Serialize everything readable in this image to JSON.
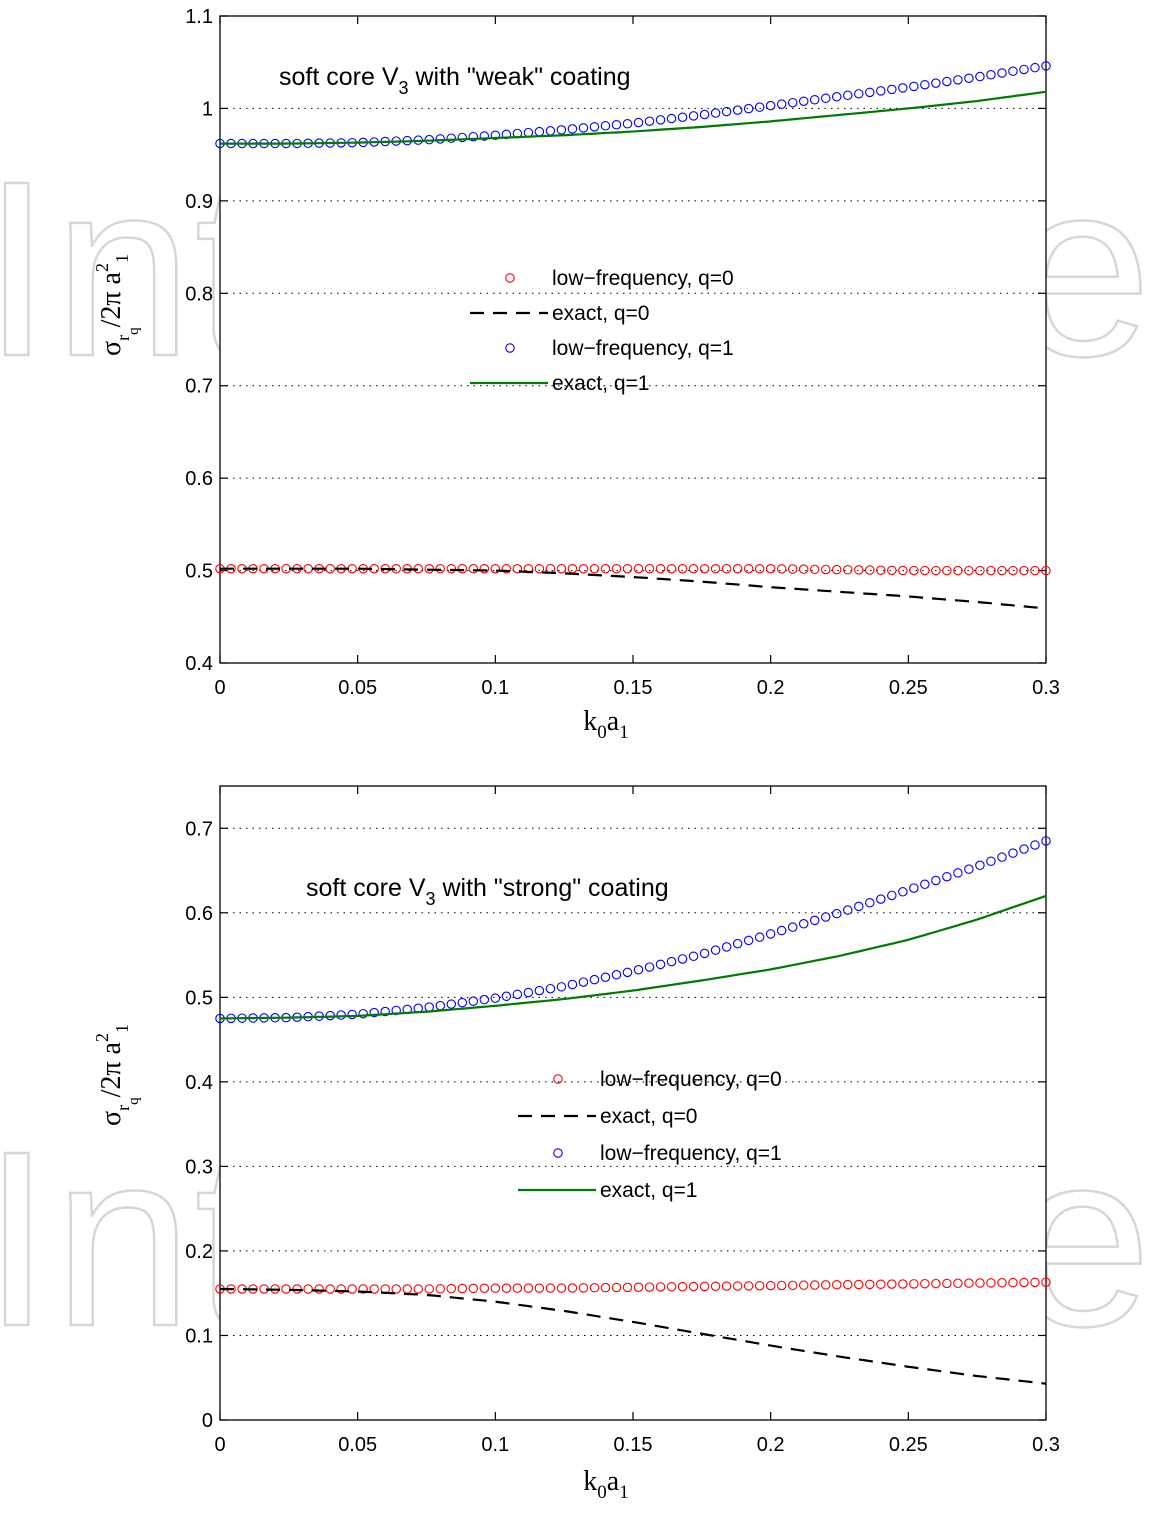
{
  "watermark": "IntechOpen",
  "chart_data": [
    {
      "type": "line",
      "annotation": {
        "text": "soft core V",
        "sub": "3",
        "rest": " with \"weak\" coating"
      },
      "xlabel": {
        "main": "k",
        "sub1": "0",
        "mid": "a",
        "sub2": "1"
      },
      "ylabel": {
        "sigma": "σ",
        "sub_r": "r",
        "sub_q": "q",
        "slash": "/2π a",
        "sup": "2",
        "sub_1": "1"
      },
      "xlim": [
        0,
        0.3
      ],
      "ylim": [
        0.4,
        1.1
      ],
      "xticks": [
        0,
        0.05,
        0.1,
        0.15,
        0.2,
        0.25,
        0.3
      ],
      "xtick_labels": [
        "0",
        "0.05",
        "0.1",
        "0.15",
        "0.2",
        "0.25",
        "0.3"
      ],
      "yticks": [
        0.4,
        0.5,
        0.6,
        0.7,
        0.8,
        0.9,
        1.0,
        1.1
      ],
      "ytick_labels": [
        "0.4",
        "0.5",
        "0.6",
        "0.7",
        "0.8",
        "0.9",
        "1",
        "1.1"
      ],
      "grid": "horizontal dotted",
      "legend_position": "center",
      "series": [
        {
          "name": "low−frequency, q=0",
          "style": "marker",
          "color": "#ff0000",
          "x": [
            0,
            0.025,
            0.05,
            0.075,
            0.1,
            0.125,
            0.15,
            0.175,
            0.2,
            0.225,
            0.25,
            0.275,
            0.3
          ],
          "y": [
            0.502,
            0.502,
            0.502,
            0.502,
            0.502,
            0.502,
            0.502,
            0.502,
            0.502,
            0.501,
            0.5,
            0.5,
            0.5
          ]
        },
        {
          "name": "exact, q=0",
          "style": "dashed",
          "color": "#000000",
          "x": [
            0,
            0.025,
            0.05,
            0.075,
            0.1,
            0.125,
            0.15,
            0.175,
            0.2,
            0.225,
            0.25,
            0.275,
            0.3
          ],
          "y": [
            0.502,
            0.502,
            0.502,
            0.501,
            0.5,
            0.497,
            0.493,
            0.488,
            0.482,
            0.477,
            0.472,
            0.466,
            0.459
          ]
        },
        {
          "name": "low−frequency, q=1",
          "style": "marker",
          "color": "#0000ff",
          "x": [
            0,
            0.025,
            0.05,
            0.075,
            0.1,
            0.125,
            0.15,
            0.175,
            0.2,
            0.225,
            0.25,
            0.275,
            0.3
          ],
          "y": [
            0.962,
            0.962,
            0.963,
            0.966,
            0.971,
            0.977,
            0.984,
            0.993,
            1.003,
            1.013,
            1.023,
            1.034,
            1.046
          ]
        },
        {
          "name": "exact, q=1",
          "style": "solid",
          "color": "#007a00",
          "x": [
            0,
            0.025,
            0.05,
            0.075,
            0.1,
            0.125,
            0.15,
            0.175,
            0.2,
            0.225,
            0.25,
            0.275,
            0.3
          ],
          "y": [
            0.962,
            0.962,
            0.963,
            0.965,
            0.968,
            0.971,
            0.975,
            0.98,
            0.986,
            0.993,
            1.0,
            1.008,
            1.018
          ]
        }
      ]
    },
    {
      "type": "line",
      "annotation": {
        "text": "soft core V",
        "sub": "3",
        "rest": " with \"strong\" coating"
      },
      "xlabel": {
        "main": "k",
        "sub1": "0",
        "mid": "a",
        "sub2": "1"
      },
      "ylabel": {
        "sigma": "σ",
        "sub_r": "r",
        "sub_q": "q",
        "slash": "/2π a",
        "sup": "2",
        "sub_1": "1"
      },
      "xlim": [
        0,
        0.3
      ],
      "ylim": [
        0,
        0.75
      ],
      "xticks": [
        0,
        0.05,
        0.1,
        0.15,
        0.2,
        0.25,
        0.3
      ],
      "xtick_labels": [
        "0",
        "0.05",
        "0.1",
        "0.15",
        "0.2",
        "0.25",
        "0.3"
      ],
      "yticks": [
        0,
        0.1,
        0.2,
        0.3,
        0.4,
        0.5,
        0.6,
        0.7
      ],
      "ytick_labels": [
        "0",
        "0.1",
        "0.2",
        "0.3",
        "0.4",
        "0.5",
        "0.6",
        "0.7"
      ],
      "grid": "horizontal dotted",
      "legend_position": "center",
      "series": [
        {
          "name": "low−frequency, q=0",
          "style": "marker",
          "color": "#ff0000",
          "x": [
            0,
            0.025,
            0.05,
            0.075,
            0.1,
            0.125,
            0.15,
            0.175,
            0.2,
            0.225,
            0.25,
            0.275,
            0.3
          ],
          "y": [
            0.155,
            0.155,
            0.155,
            0.155,
            0.156,
            0.156,
            0.157,
            0.158,
            0.159,
            0.16,
            0.161,
            0.162,
            0.163
          ]
        },
        {
          "name": "exact, q=0",
          "style": "dashed",
          "color": "#000000",
          "x": [
            0,
            0.025,
            0.05,
            0.075,
            0.1,
            0.125,
            0.15,
            0.175,
            0.2,
            0.225,
            0.25,
            0.275,
            0.3
          ],
          "y": [
            0.155,
            0.154,
            0.152,
            0.148,
            0.14,
            0.129,
            0.116,
            0.102,
            0.088,
            0.075,
            0.063,
            0.052,
            0.043
          ]
        },
        {
          "name": "low−frequency, q=1",
          "style": "marker",
          "color": "#0000ff",
          "x": [
            0,
            0.025,
            0.05,
            0.075,
            0.1,
            0.125,
            0.15,
            0.175,
            0.2,
            0.225,
            0.25,
            0.275,
            0.3
          ],
          "y": [
            0.475,
            0.476,
            0.48,
            0.488,
            0.499,
            0.513,
            0.531,
            0.551,
            0.575,
            0.6,
            0.627,
            0.655,
            0.685
          ]
        },
        {
          "name": "exact, q=1",
          "style": "solid",
          "color": "#007a00",
          "x": [
            0,
            0.025,
            0.05,
            0.075,
            0.1,
            0.125,
            0.15,
            0.175,
            0.2,
            0.225,
            0.25,
            0.275,
            0.3
          ],
          "y": [
            0.475,
            0.476,
            0.478,
            0.483,
            0.49,
            0.498,
            0.508,
            0.52,
            0.533,
            0.549,
            0.568,
            0.592,
            0.62
          ]
        }
      ]
    }
  ]
}
